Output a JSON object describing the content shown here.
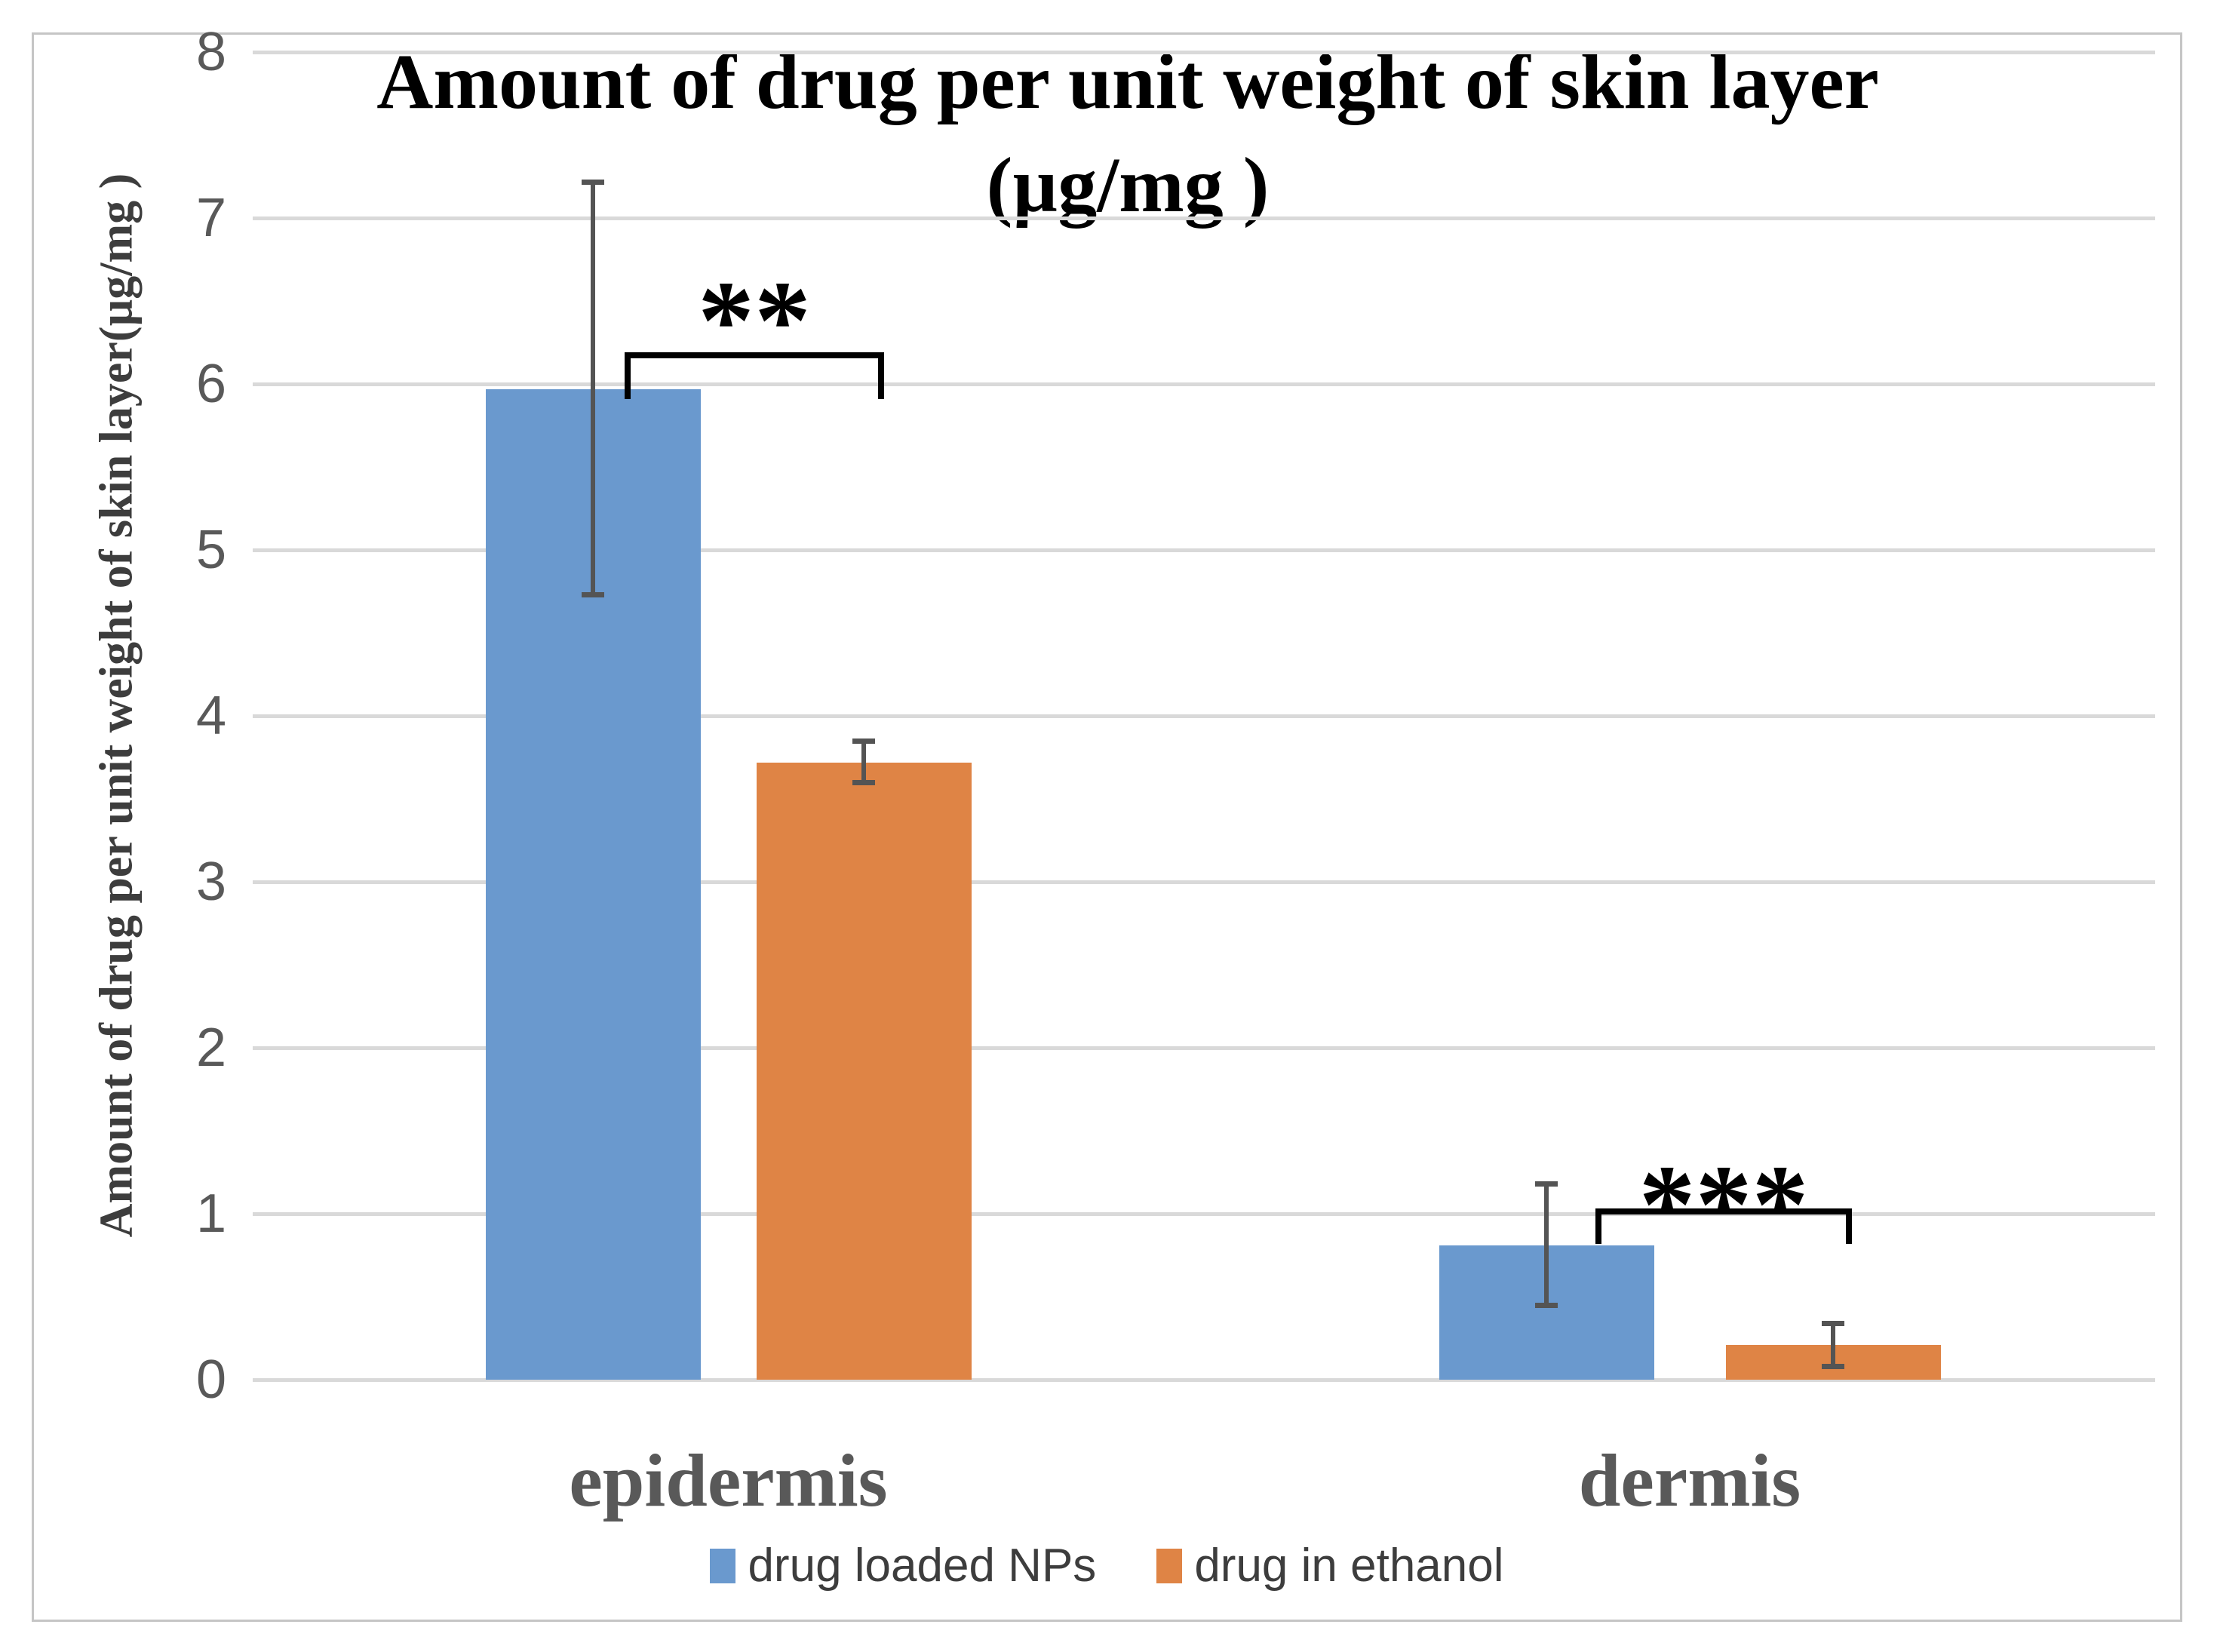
{
  "figure": {
    "title_line1": "Amount of drug per unit weight of skin layer",
    "title_line2": "(µg/mg )",
    "y_axis_label": "Amount of drug per unit weight of skin layer(µg/mg )"
  },
  "legend": {
    "items": [
      {
        "label": "drug loaded NPs",
        "color": "#6A99CE"
      },
      {
        "label": "drug in ethanol",
        "color": "#DF8445"
      }
    ]
  },
  "chart_data": {
    "type": "bar",
    "title": "Amount of drug per unit weight of skin layer (µg/mg )",
    "xlabel": "",
    "ylabel": "Amount of drug per unit weight of skin layer(µg/mg )",
    "categories": [
      "epidermis",
      "dermis"
    ],
    "series": [
      {
        "name": "drug loaded NPs",
        "color": "#6A99CE",
        "values": [
          5.97,
          0.81
        ],
        "error_high": [
          7.22,
          1.18
        ],
        "error_low": [
          4.73,
          0.45
        ]
      },
      {
        "name": "drug in ethanol",
        "color": "#DF8445",
        "values": [
          3.72,
          0.21
        ],
        "error_high": [
          3.85,
          0.34
        ],
        "error_low": [
          3.6,
          0.08
        ]
      }
    ],
    "ylim": [
      0,
      8
    ],
    "yticks": [
      0,
      1,
      2,
      3,
      4,
      5,
      6,
      7,
      8
    ],
    "grid": true,
    "legend_position": "bottom",
    "annotations": [
      {
        "label": "**",
        "category": "epidermis",
        "bracket_y_value": 6.19,
        "bracket_drop_to_value": 5.91,
        "label_center_value": 6.52
      },
      {
        "label": "***",
        "category": "dermis",
        "bracket_y_value": 1.03,
        "bracket_drop_to_value": 0.82,
        "label_center_value": 1.19
      }
    ],
    "colors": {
      "gridline": "#D9D9D9",
      "error_bar": "#545454",
      "tick_label": "#595959",
      "category_label": "#595959",
      "annotation": "#000000"
    }
  }
}
